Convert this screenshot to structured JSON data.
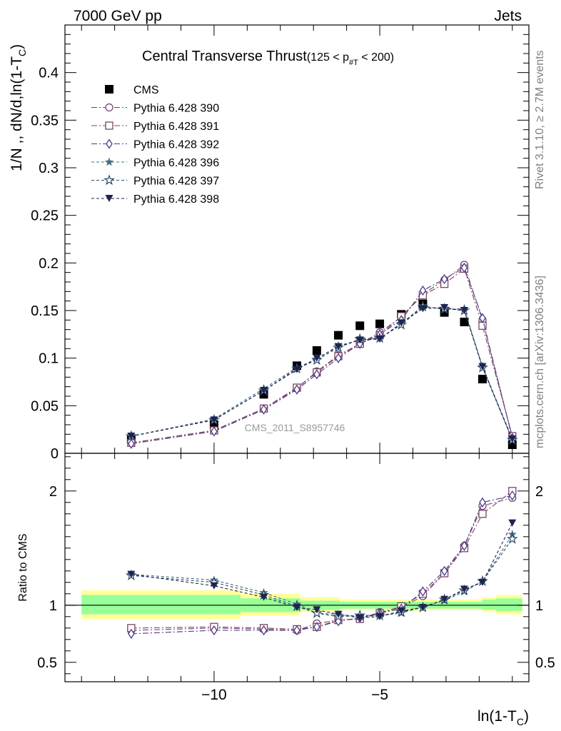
{
  "header": {
    "left": "7000 GeV pp",
    "right": "Jets"
  },
  "side_text": {
    "top": "Rivet 3.1.10, ≥ 2.7M events",
    "bottom": "mcplots.cern.ch [arXiv:1306.3436]"
  },
  "watermark": "CMS_2011_S8957746",
  "chart_data": [
    {
      "type": "scatter",
      "title": "Central Transverse Thrust",
      "title_suffix": "(125 < p",
      "title_sub": "#T",
      "title_suffix2": " < 200)",
      "ylabel": "1/N ,, dN/d,ln(1-T",
      "ylabel_sub": "C",
      "ylabel_end": ")",
      "xlim": [
        -14.5,
        -0.5
      ],
      "ylim": [
        0,
        0.45
      ],
      "yticks": [
        0,
        0.05,
        0.1,
        0.15,
        0.2,
        0.25,
        0.3,
        0.35,
        0.4
      ],
      "ytick_labels": [
        "0",
        "0.05",
        "0.1",
        "0.15",
        "0.2",
        "0.25",
        "0.3",
        "0.35",
        "0.4"
      ],
      "x": [
        -12.5,
        -10.0,
        -8.5,
        -7.5,
        -6.9,
        -6.25,
        -5.6,
        -5.0,
        -4.35,
        -3.7,
        -3.05,
        -2.45,
        -1.9,
        -1.0
      ],
      "legend_placement": "top-left",
      "series": [
        {
          "name": "CMS",
          "marker": "square",
          "color": "#000000",
          "dash": "none",
          "values": [
            0.015,
            0.03,
            0.062,
            0.092,
            0.108,
            0.124,
            0.134,
            0.136,
            0.146,
            0.157,
            0.148,
            0.138,
            0.078,
            0.009
          ]
        },
        {
          "name": "Pythia 6.428 390",
          "marker": "circle-open",
          "color": "#7a3f78",
          "dash": "8,3,2,3",
          "values": [
            0.011,
            0.024,
            0.047,
            0.068,
            0.086,
            0.103,
            0.115,
            0.127,
            0.143,
            0.167,
            0.182,
            0.198,
            0.14,
            0.017
          ]
        },
        {
          "name": "Pythia 6.428 391",
          "marker": "square-open",
          "color": "#7a4460",
          "dash": "8,3,2,3",
          "values": [
            0.011,
            0.024,
            0.047,
            0.069,
            0.085,
            0.102,
            0.115,
            0.124,
            0.144,
            0.166,
            0.178,
            0.194,
            0.134,
            0.018
          ]
        },
        {
          "name": "Pythia 6.428 392",
          "marker": "diamond-open",
          "color": "#4b3a86",
          "dash": "8,3,2,3",
          "values": [
            0.01,
            0.023,
            0.046,
            0.067,
            0.083,
            0.1,
            0.115,
            0.125,
            0.14,
            0.171,
            0.183,
            0.195,
            0.142,
            0.016
          ]
        },
        {
          "name": "Pythia 6.428 396",
          "marker": "star",
          "color": "#3f6b7d",
          "dash": "4,3",
          "values": [
            0.018,
            0.036,
            0.068,
            0.09,
            0.099,
            0.113,
            0.119,
            0.121,
            0.136,
            0.155,
            0.151,
            0.152,
            0.091,
            0.014
          ]
        },
        {
          "name": "Pythia 6.428 397",
          "marker": "star-open",
          "color": "#2d4a6a",
          "dash": "4,3",
          "values": [
            0.018,
            0.035,
            0.066,
            0.089,
            0.098,
            0.111,
            0.12,
            0.121,
            0.135,
            0.154,
            0.152,
            0.15,
            0.09,
            0.014
          ]
        },
        {
          "name": "Pythia 6.428 398",
          "marker": "triangle-down",
          "color": "#1e2450",
          "dash": "4,3",
          "values": [
            0.018,
            0.035,
            0.066,
            0.088,
            0.1,
            0.112,
            0.119,
            0.12,
            0.137,
            0.152,
            0.153,
            0.15,
            0.091,
            0.015
          ]
        }
      ]
    },
    {
      "type": "scatter",
      "ylabel": "Ratio to CMS",
      "xlabel": "ln(1-T",
      "xlabel_sub": "C",
      "xlabel_end": ")",
      "xlim": [
        -14.5,
        -0.5
      ],
      "ylim": [
        0.33,
        2.33
      ],
      "yticks": [
        0.5,
        1,
        2
      ],
      "ytick_labels": [
        "0.5",
        "1",
        "2"
      ],
      "xticks": [
        -10,
        -5
      ],
      "xtick_labels": [
        "−10",
        "−5"
      ],
      "x": [
        -12.5,
        -10.0,
        -8.5,
        -7.5,
        -6.9,
        -6.25,
        -5.6,
        -5.0,
        -4.35,
        -3.7,
        -3.05,
        -2.45,
        -1.9,
        -1.0
      ],
      "band_edges": [
        -14.0,
        -9.2,
        -7.4,
        -6.2,
        -5.0,
        -3.7,
        -2.5,
        -1.9,
        -1.5,
        -0.7
      ],
      "band_yellow": [
        [
          0.88,
          1.13
        ],
        [
          0.91,
          1.1
        ],
        [
          0.94,
          1.07
        ],
        [
          0.96,
          1.05
        ],
        [
          0.95,
          1.05
        ],
        [
          0.96,
          1.05
        ],
        [
          0.96,
          1.05
        ],
        [
          0.94,
          1.07
        ],
        [
          0.92,
          1.09
        ]
      ],
      "band_green": [
        [
          0.92,
          1.09
        ],
        [
          0.94,
          1.06
        ],
        [
          0.96,
          1.04
        ],
        [
          0.97,
          1.03
        ],
        [
          0.97,
          1.03
        ],
        [
          0.97,
          1.03
        ],
        [
          0.97,
          1.03
        ],
        [
          0.96,
          1.05
        ],
        [
          0.95,
          1.06
        ]
      ],
      "series": [
        {
          "name": "Pythia 6.428 390",
          "values": [
            0.78,
            0.8,
            0.79,
            0.78,
            0.84,
            0.87,
            0.88,
            0.94,
            0.98,
            1.08,
            1.28,
            1.52,
            1.87,
            1.94
          ]
        },
        {
          "name": "Pythia 6.428 391",
          "values": [
            0.8,
            0.81,
            0.8,
            0.79,
            0.81,
            0.87,
            0.88,
            0.93,
            0.99,
            1.1,
            1.28,
            1.5,
            1.8,
            2.0
          ]
        },
        {
          "name": "Pythia 6.428 392",
          "values": [
            0.75,
            0.78,
            0.78,
            0.78,
            0.81,
            0.86,
            0.89,
            0.93,
            0.97,
            1.12,
            1.3,
            1.52,
            1.9,
            1.96
          ]
        },
        {
          "name": "Pythia 6.428 396",
          "values": [
            1.27,
            1.22,
            1.11,
            1.01,
            0.93,
            0.92,
            0.9,
            0.91,
            0.93,
            0.99,
            1.04,
            1.12,
            1.21,
            1.62
          ]
        },
        {
          "name": "Pythia 6.428 397",
          "values": [
            1.26,
            1.2,
            1.09,
            0.99,
            0.93,
            0.9,
            0.91,
            0.91,
            0.94,
            0.98,
            1.05,
            1.13,
            1.21,
            1.58
          ]
        },
        {
          "name": "Pythia 6.428 398",
          "values": [
            1.27,
            1.17,
            1.07,
            0.98,
            0.96,
            0.92,
            0.89,
            0.9,
            0.95,
            0.98,
            1.05,
            1.14,
            1.2,
            1.72
          ]
        }
      ]
    }
  ]
}
